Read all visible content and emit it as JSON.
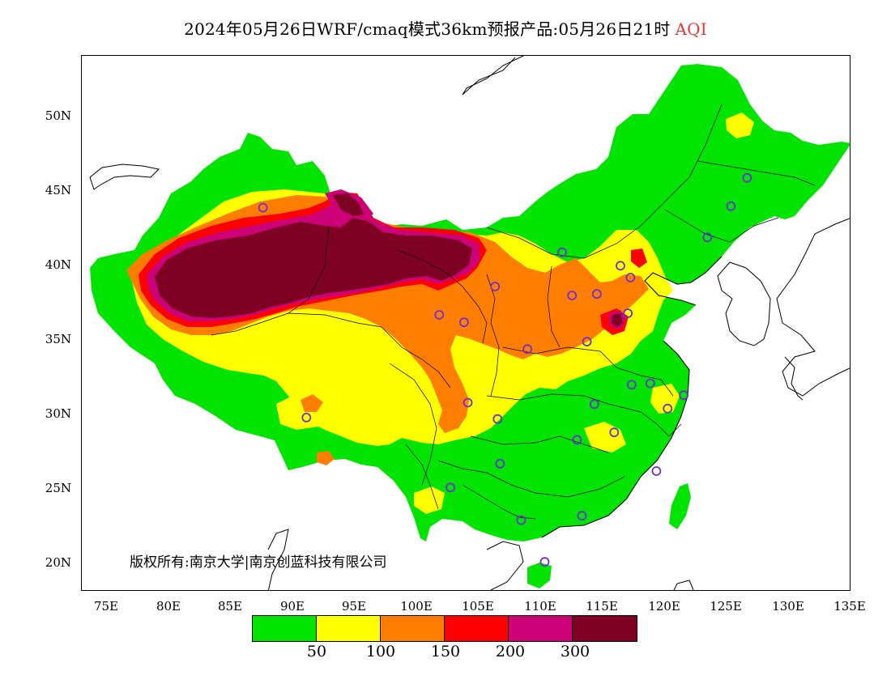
{
  "title": {
    "text": "2024年05月26日WRF/cmaq模式36km预报产品:05月26日21时",
    "variable": "AQI",
    "variable_color": "#e53935"
  },
  "axes": {
    "y_labels": [
      "50N",
      "45N",
      "40N",
      "35N",
      "30N",
      "25N",
      "20N"
    ],
    "x_labels": [
      "75E",
      "80E",
      "85E",
      "90E",
      "95E",
      "100E",
      "105E",
      "110E",
      "115E",
      "120E",
      "125E",
      "130E",
      "135E"
    ],
    "lon_range": [
      73,
      135
    ],
    "lat_range": [
      18,
      54
    ]
  },
  "copyright": "版权所有:南京大学|南京创蓝科技有限公司",
  "legend": {
    "colors": [
      "#00e400",
      "#ffff00",
      "#ff7e00",
      "#ff0000",
      "#cc0077",
      "#7e0023"
    ],
    "labels": [
      "50",
      "100",
      "150",
      "200",
      "300"
    ]
  },
  "stations": [
    {
      "lon": 87.6,
      "lat": 43.8
    },
    {
      "lon": 91.1,
      "lat": 29.7
    },
    {
      "lon": 101.8,
      "lat": 36.6
    },
    {
      "lon": 103.8,
      "lat": 36.1
    },
    {
      "lon": 106.3,
      "lat": 38.5
    },
    {
      "lon": 104.1,
      "lat": 30.7
    },
    {
      "lon": 106.5,
      "lat": 29.6
    },
    {
      "lon": 102.7,
      "lat": 25.0
    },
    {
      "lon": 106.7,
      "lat": 26.6
    },
    {
      "lon": 108.4,
      "lat": 22.8
    },
    {
      "lon": 110.3,
      "lat": 20.0
    },
    {
      "lon": 108.9,
      "lat": 34.3
    },
    {
      "lon": 111.7,
      "lat": 40.8
    },
    {
      "lon": 112.5,
      "lat": 37.9
    },
    {
      "lon": 114.5,
      "lat": 38.0
    },
    {
      "lon": 116.4,
      "lat": 39.9
    },
    {
      "lon": 117.2,
      "lat": 39.1
    },
    {
      "lon": 117.0,
      "lat": 36.7
    },
    {
      "lon": 113.7,
      "lat": 34.8
    },
    {
      "lon": 114.3,
      "lat": 30.6
    },
    {
      "lon": 112.9,
      "lat": 28.2
    },
    {
      "lon": 115.9,
      "lat": 28.7
    },
    {
      "lon": 117.3,
      "lat": 31.9
    },
    {
      "lon": 118.8,
      "lat": 32.0
    },
    {
      "lon": 120.2,
      "lat": 30.3
    },
    {
      "lon": 121.5,
      "lat": 31.2
    },
    {
      "lon": 119.3,
      "lat": 26.1
    },
    {
      "lon": 113.3,
      "lat": 23.1
    },
    {
      "lon": 123.4,
      "lat": 41.8
    },
    {
      "lon": 125.3,
      "lat": 43.9
    },
    {
      "lon": 126.6,
      "lat": 45.8
    }
  ]
}
